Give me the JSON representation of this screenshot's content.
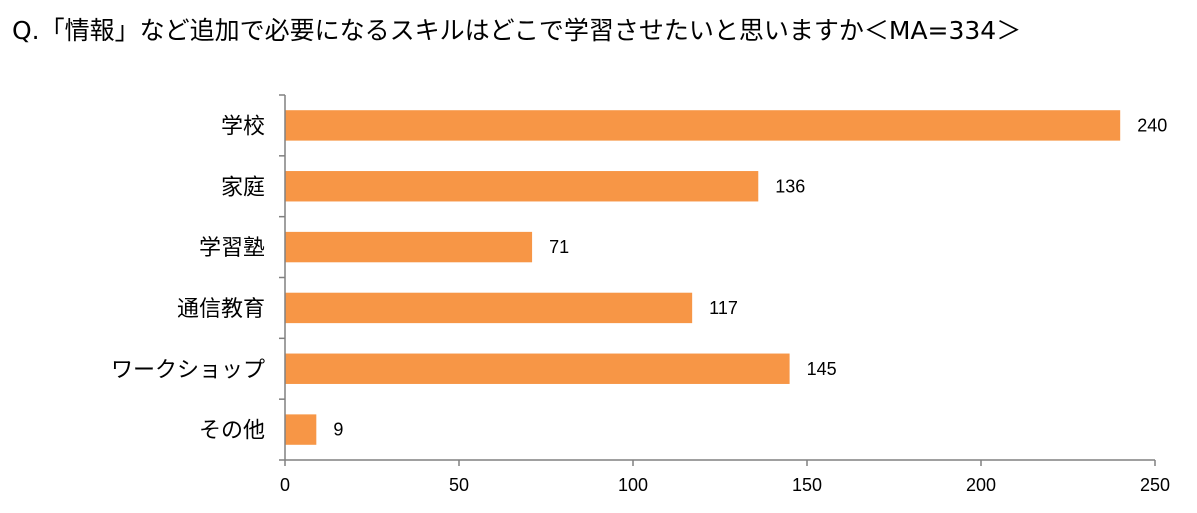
{
  "question": "Q.「情報」など追加で必要になるスキルはどこで学習させたいと思いますか＜MA=334＞",
  "colors": {
    "bar": "#F79646",
    "axis": "#808080"
  },
  "chart_data": {
    "type": "bar",
    "orientation": "horizontal",
    "title": "Q.「情報」など追加で必要になるスキルはどこで学習させたいと思いますか＜MA=334＞",
    "categories": [
      "学校",
      "家庭",
      "学習塾",
      "通信教育",
      "ワークショップ",
      "その他"
    ],
    "values": [
      240,
      136,
      71,
      117,
      145,
      9
    ],
    "xlim": [
      0,
      250
    ],
    "xticks": [
      0,
      50,
      100,
      150,
      200,
      250
    ],
    "grid": false,
    "legend": "none"
  }
}
